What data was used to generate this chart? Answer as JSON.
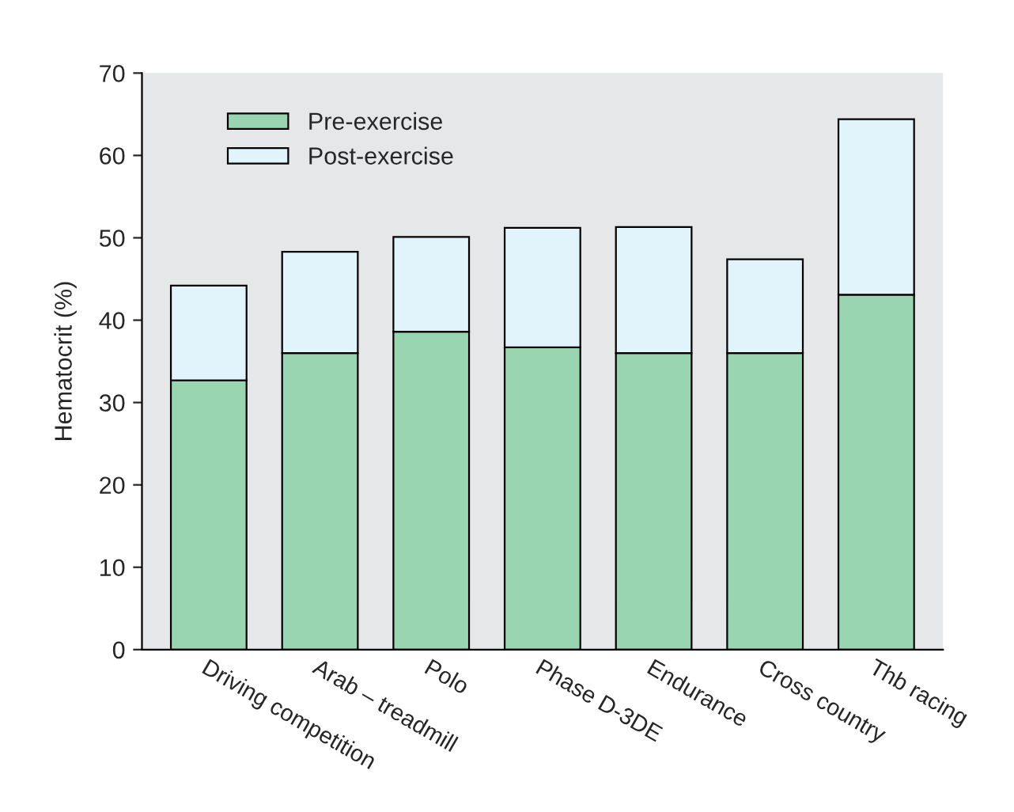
{
  "chart_data": {
    "type": "bar",
    "stacked": true,
    "ylabel": "Hematocrit (%)",
    "categories": [
      "Driving competition",
      "Arab – treadmill",
      "Polo",
      "Phase D-3DE",
      "Endurance",
      "Cross country",
      "Thb racing"
    ],
    "series": [
      {
        "name": "Pre-exercise",
        "color": "#99d5b0",
        "values": [
          32.7,
          36.0,
          38.6,
          36.7,
          36.0,
          36.0,
          43.1
        ]
      },
      {
        "name": "Post-exercise",
        "color": "#e1f3fb",
        "values": [
          11.5,
          12.3,
          11.5,
          14.5,
          15.3,
          11.4,
          21.3
        ]
      }
    ],
    "ylim": [
      0,
      70
    ],
    "yticks": [
      0,
      10,
      20,
      30,
      40,
      50,
      60,
      70
    ],
    "grid": false,
    "legend": "top left"
  }
}
